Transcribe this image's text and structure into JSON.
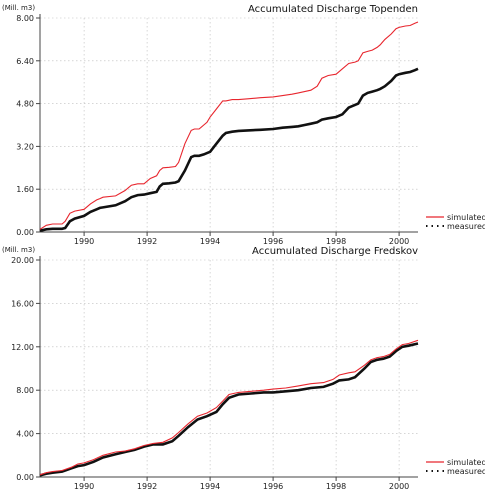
{
  "chart_data": [
    {
      "type": "line",
      "title": "Accumulated Discharge Topenden",
      "ylabel": "(Mill. m3)",
      "xlim": [
        1988.6,
        2000.6
      ],
      "ylim": [
        0,
        8
      ],
      "yticks": [
        0,
        1.6,
        3.2,
        4.8,
        6.4,
        8.0
      ],
      "ytick_labels": [
        "0.00",
        "1.60",
        "3.20",
        "4.80",
        "6.40",
        "8.00"
      ],
      "xticks": [
        1990,
        1992,
        1994,
        1996,
        1998,
        2000
      ],
      "xtick_labels": [
        "1990",
        "1992",
        "1994",
        "1996",
        "1998",
        "2000"
      ],
      "grid": true,
      "legend": "bottom-right",
      "series": [
        {
          "name": "simulated",
          "color": "#e8262e",
          "style": "solid",
          "x": [
            1988.6,
            1988.8,
            1989.0,
            1989.3,
            1989.4,
            1989.55,
            1989.7,
            1990.0,
            1990.2,
            1990.4,
            1990.5,
            1990.6,
            1991.0,
            1991.3,
            1991.5,
            1991.7,
            1991.9,
            1992.1,
            1992.3,
            1992.4,
            1992.5,
            1992.7,
            1992.9,
            1993.0,
            1993.2,
            1993.4,
            1993.5,
            1993.65,
            1993.8,
            1993.9,
            1994.0,
            1994.2,
            1994.4,
            1994.5,
            1994.7,
            1994.9,
            1995.2,
            1995.6,
            1996.0,
            1996.3,
            1996.6,
            1996.8,
            1997.0,
            1997.2,
            1997.4,
            1997.55,
            1997.75,
            1998.0,
            1998.2,
            1998.4,
            1998.6,
            1998.7,
            1998.85,
            1999.0,
            1999.15,
            1999.3,
            1999.4,
            1999.55,
            1999.75,
            1999.9,
            2000.0,
            2000.2,
            2000.35,
            2000.5,
            2000.6
          ],
          "values": [
            0.1,
            0.25,
            0.3,
            0.3,
            0.4,
            0.7,
            0.78,
            0.85,
            1.05,
            1.2,
            1.25,
            1.3,
            1.35,
            1.55,
            1.75,
            1.8,
            1.8,
            2.0,
            2.1,
            2.3,
            2.4,
            2.42,
            2.45,
            2.6,
            3.3,
            3.8,
            3.85,
            3.85,
            4.0,
            4.1,
            4.3,
            4.6,
            4.9,
            4.9,
            4.95,
            4.95,
            4.98,
            5.02,
            5.05,
            5.1,
            5.15,
            5.2,
            5.25,
            5.3,
            5.45,
            5.75,
            5.85,
            5.9,
            6.1,
            6.3,
            6.35,
            6.4,
            6.7,
            6.75,
            6.8,
            6.9,
            7.0,
            7.2,
            7.4,
            7.6,
            7.65,
            7.7,
            7.72,
            7.8,
            7.85
          ]
        },
        {
          "name": "measured",
          "color": "#111111",
          "style": "dotted",
          "x": [
            1988.6,
            1988.8,
            1989.0,
            1989.3,
            1989.4,
            1989.55,
            1989.7,
            1990.0,
            1990.2,
            1990.4,
            1990.5,
            1990.6,
            1991.0,
            1991.3,
            1991.5,
            1991.7,
            1991.9,
            1992.1,
            1992.3,
            1992.4,
            1992.5,
            1992.7,
            1992.9,
            1993.0,
            1993.2,
            1993.4,
            1993.5,
            1993.65,
            1993.8,
            1993.9,
            1994.0,
            1994.2,
            1994.4,
            1994.5,
            1994.7,
            1994.9,
            1995.2,
            1995.6,
            1996.0,
            1996.3,
            1996.6,
            1996.8,
            1997.0,
            1997.2,
            1997.4,
            1997.55,
            1997.75,
            1998.0,
            1998.2,
            1998.4,
            1998.6,
            1998.7,
            1998.85,
            1999.0,
            1999.15,
            1999.3,
            1999.4,
            1999.55,
            1999.75,
            1999.9,
            2000.0,
            2000.2,
            2000.35,
            2000.5,
            2000.6
          ],
          "values": [
            0.05,
            0.1,
            0.12,
            0.12,
            0.15,
            0.4,
            0.5,
            0.6,
            0.75,
            0.85,
            0.9,
            0.92,
            1.0,
            1.15,
            1.3,
            1.38,
            1.4,
            1.45,
            1.5,
            1.7,
            1.8,
            1.82,
            1.85,
            1.9,
            2.3,
            2.8,
            2.85,
            2.85,
            2.9,
            2.95,
            3.0,
            3.3,
            3.6,
            3.7,
            3.75,
            3.78,
            3.8,
            3.82,
            3.85,
            3.9,
            3.93,
            3.95,
            4.0,
            4.05,
            4.1,
            4.2,
            4.25,
            4.3,
            4.4,
            4.65,
            4.75,
            4.8,
            5.1,
            5.2,
            5.25,
            5.3,
            5.35,
            5.45,
            5.65,
            5.85,
            5.9,
            5.95,
            5.98,
            6.05,
            6.1
          ]
        }
      ]
    },
    {
      "type": "line",
      "title": "Accumulated Discharge Fredskov",
      "ylabel": "(Mill. m3)",
      "xlim": [
        1988.6,
        2000.6
      ],
      "ylim": [
        0,
        20
      ],
      "yticks": [
        0,
        4,
        8,
        12,
        16,
        20
      ],
      "ytick_labels": [
        "0.00",
        "4.00",
        "8.00",
        "12.00",
        "16.00",
        "20.00"
      ],
      "xticks": [
        1990,
        1992,
        1994,
        1996,
        1998,
        2000
      ],
      "xtick_labels": [
        "1990",
        "1992",
        "1994",
        "1996",
        "1998",
        "2000"
      ],
      "grid": true,
      "legend": "bottom-right",
      "series": [
        {
          "name": "simulated",
          "color": "#e8262e",
          "style": "solid",
          "x": [
            1988.6,
            1988.8,
            1989.0,
            1989.3,
            1989.6,
            1989.8,
            1990.0,
            1990.3,
            1990.6,
            1991.0,
            1991.3,
            1991.6,
            1991.9,
            1992.2,
            1992.5,
            1992.8,
            1993.0,
            1993.3,
            1993.6,
            1993.9,
            1994.2,
            1994.4,
            1994.6,
            1994.9,
            1995.3,
            1995.7,
            1996.0,
            1996.4,
            1996.8,
            1997.2,
            1997.6,
            1997.9,
            1998.1,
            1998.4,
            1998.6,
            1998.9,
            1999.1,
            1999.3,
            1999.5,
            1999.7,
            1999.9,
            2000.1,
            2000.3,
            2000.6
          ],
          "values": [
            0.2,
            0.4,
            0.5,
            0.6,
            0.9,
            1.2,
            1.3,
            1.6,
            2.0,
            2.3,
            2.4,
            2.6,
            2.9,
            3.1,
            3.2,
            3.6,
            4.1,
            4.9,
            5.6,
            5.9,
            6.4,
            7.0,
            7.6,
            7.8,
            7.9,
            8.0,
            8.1,
            8.2,
            8.4,
            8.6,
            8.7,
            9.0,
            9.4,
            9.6,
            9.7,
            10.3,
            10.8,
            11.0,
            11.1,
            11.3,
            11.8,
            12.2,
            12.3,
            12.6
          ]
        },
        {
          "name": "measured",
          "color": "#111111",
          "style": "dotted",
          "x": [
            1988.6,
            1988.8,
            1989.0,
            1989.3,
            1989.6,
            1989.8,
            1990.0,
            1990.3,
            1990.6,
            1991.0,
            1991.3,
            1991.6,
            1991.9,
            1992.2,
            1992.5,
            1992.8,
            1993.0,
            1993.3,
            1993.6,
            1993.9,
            1994.2,
            1994.4,
            1994.6,
            1994.9,
            1995.3,
            1995.7,
            1996.0,
            1996.4,
            1996.8,
            1997.2,
            1997.6,
            1997.9,
            1998.1,
            1998.4,
            1998.6,
            1998.9,
            1999.1,
            1999.3,
            1999.5,
            1999.7,
            1999.9,
            2000.1,
            2000.3,
            2000.6
          ],
          "values": [
            0.15,
            0.3,
            0.4,
            0.5,
            0.8,
            1.0,
            1.1,
            1.4,
            1.8,
            2.1,
            2.3,
            2.5,
            2.8,
            3.0,
            3.0,
            3.3,
            3.8,
            4.6,
            5.3,
            5.6,
            6.0,
            6.7,
            7.3,
            7.6,
            7.7,
            7.8,
            7.8,
            7.9,
            8.0,
            8.2,
            8.3,
            8.6,
            8.9,
            9.0,
            9.2,
            10.0,
            10.6,
            10.8,
            10.9,
            11.1,
            11.6,
            12.0,
            12.1,
            12.3
          ]
        }
      ]
    }
  ]
}
